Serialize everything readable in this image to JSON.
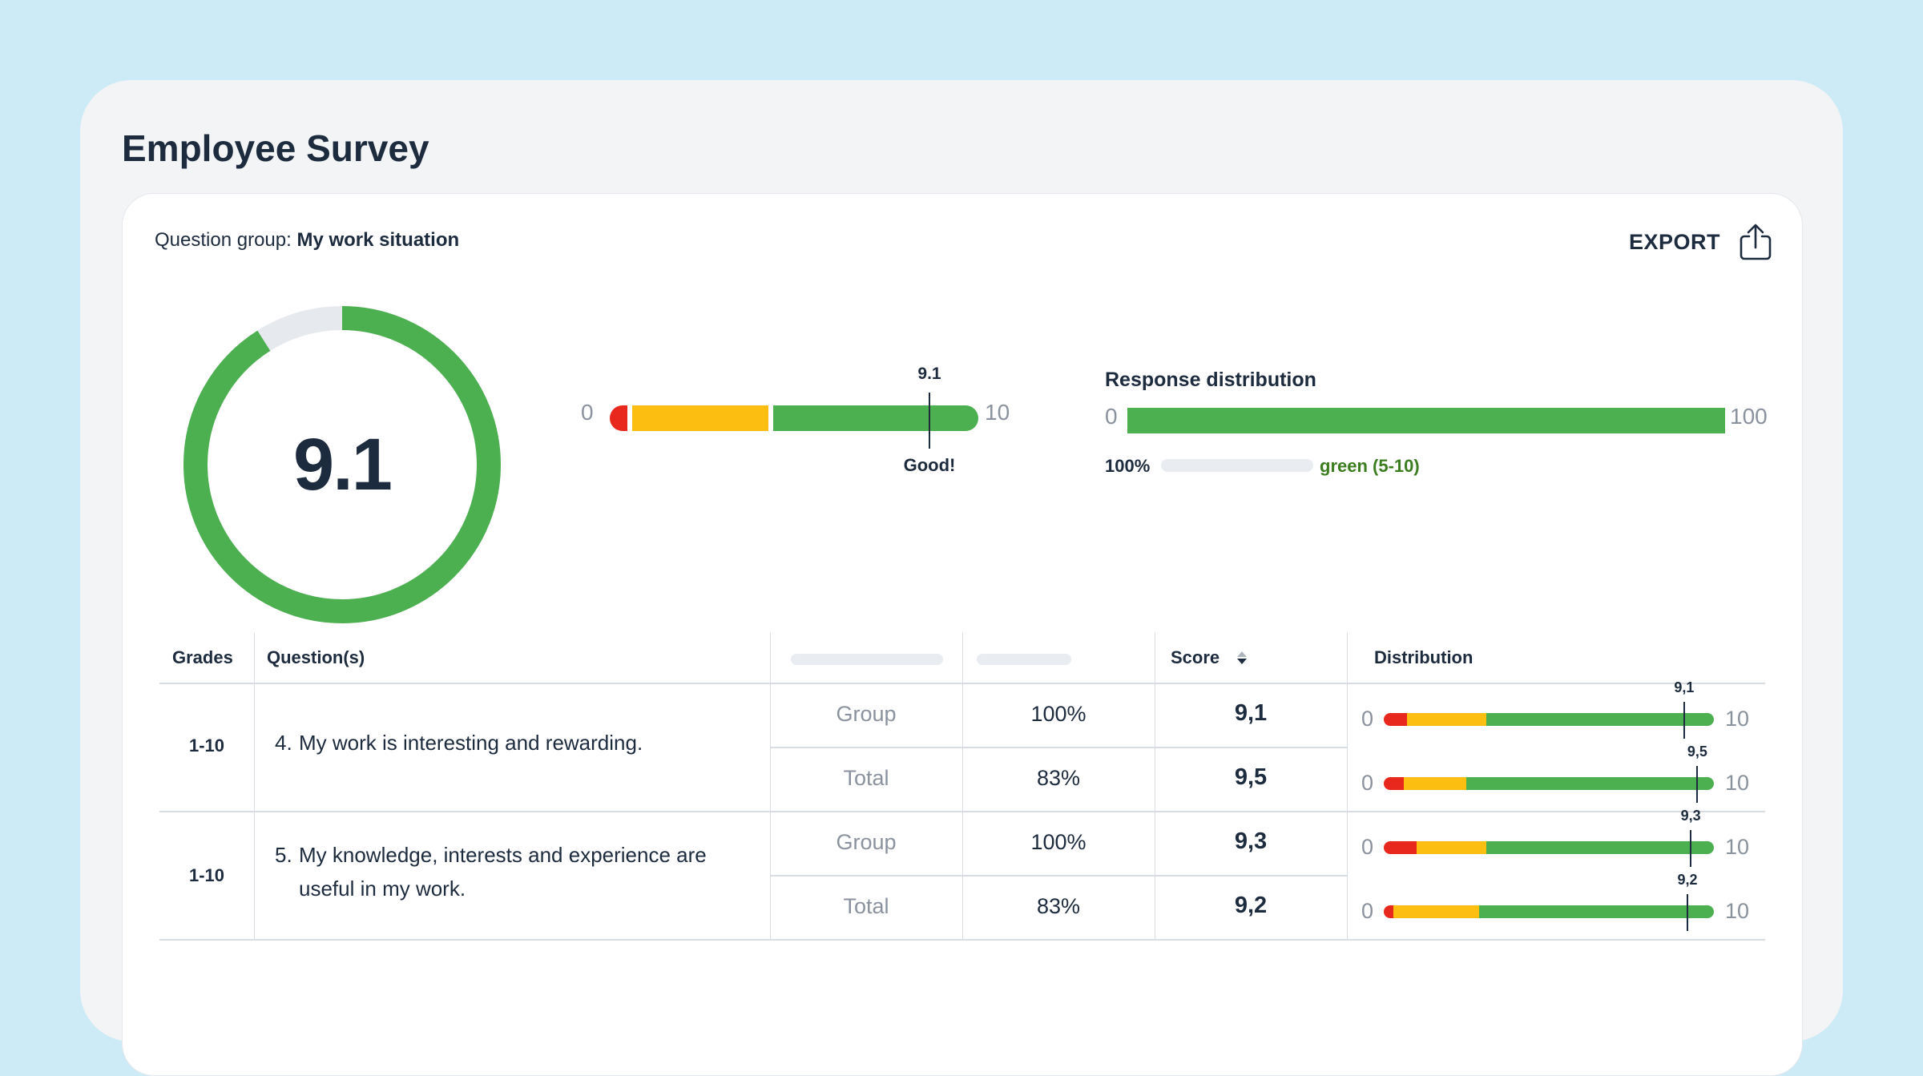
{
  "page": {
    "title": "Employee Survey"
  },
  "panel": {
    "group_prefix": "Question group:",
    "group_name": "My work situation",
    "export_label": "EXPORT",
    "export_icon": "share-upload-icon"
  },
  "summary": {
    "score": "9.1",
    "score_fraction": 0.91,
    "colors": {
      "green": "#4caf50",
      "yellow": "#fcbe11",
      "red": "#e8281c",
      "track": "#e6e9ed"
    },
    "scale": {
      "min": "0",
      "max": "10",
      "marker_label": "9.1",
      "verdict": "Good!",
      "segments": [
        {
          "color": "red",
          "from": 0,
          "to": 0.5
        },
        {
          "color": "yellow",
          "from": 0.5,
          "to": 4.3
        },
        {
          "color": "green",
          "from": 4.3,
          "to": 10
        }
      ]
    },
    "response_distribution": {
      "title": "Response distribution",
      "min": "0",
      "max": "100",
      "green_fraction": 1.0,
      "percent": "100%",
      "legend": "green (5-10)"
    }
  },
  "table": {
    "headers": {
      "grades": "Grades",
      "questions": "Question(s)",
      "score": "Score",
      "distribution": "Distribution"
    },
    "sort_icon": "sort-arrows-icon",
    "questions": [
      {
        "grades": "1-10",
        "number": "4.",
        "text": "My work is interesting and rewarding.",
        "rows": [
          {
            "label": "Group",
            "pct": "100%",
            "score": "9,1",
            "dist": {
              "min": "0",
              "max": "10",
              "red": 0.7,
              "yellow": 2.4,
              "green": 6.9,
              "marker": 9.1,
              "marker_label": "9,1"
            }
          },
          {
            "label": "Total",
            "pct": "83%",
            "score": "9,5",
            "dist": {
              "min": "0",
              "max": "10",
              "red": 0.6,
              "yellow": 1.9,
              "green": 7.5,
              "marker": 9.5,
              "marker_label": "9,5"
            }
          }
        ]
      },
      {
        "grades": "1-10",
        "number": "5.",
        "text": "My knowledge, interests and experience are useful in my work.",
        "rows": [
          {
            "label": "Group",
            "pct": "100%",
            "score": "9,3",
            "dist": {
              "min": "0",
              "max": "10",
              "red": 1.0,
              "yellow": 2.1,
              "green": 6.9,
              "marker": 9.3,
              "marker_label": "9,3"
            }
          },
          {
            "label": "Total",
            "pct": "83%",
            "score": "9,2",
            "dist": {
              "min": "0",
              "max": "10",
              "red": 0.3,
              "yellow": 2.6,
              "green": 7.1,
              "marker": 9.2,
              "marker_label": "9,2"
            }
          }
        ]
      }
    ]
  }
}
